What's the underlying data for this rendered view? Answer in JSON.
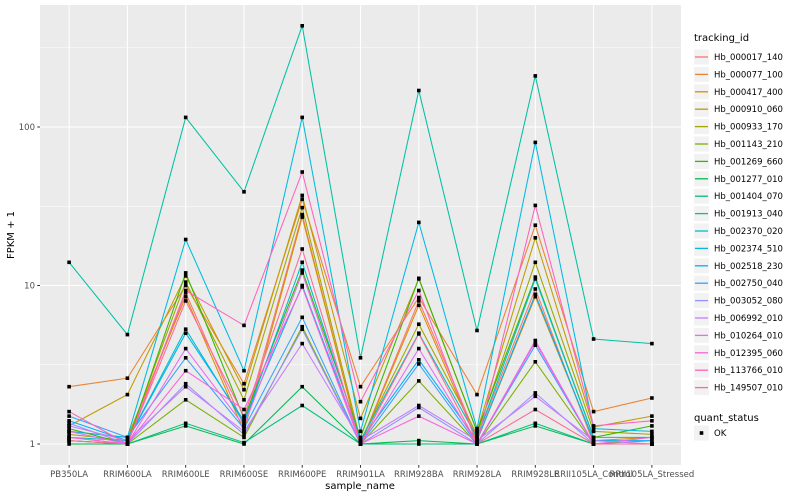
{
  "figure": {
    "background": "#FFFFFF",
    "panel_background": "#EBEBEB",
    "grid_color": "#FFFFFF",
    "tick_color": "#333333",
    "tick_label_color": "#4D4D4D",
    "axis_title_color": "#000000",
    "legend_key_background": "#F2F2F2"
  },
  "chart_data": {
    "type": "line",
    "title": "",
    "xlabel": "sample_name",
    "ylabel": "FPKM + 1",
    "y_scale": "log10",
    "grid": true,
    "legend_position": "right",
    "y_tick_labels": [
      "1",
      "10",
      "100"
    ],
    "y_tick_values": [
      1,
      10,
      100
    ],
    "y_minor_values": [
      3.1623,
      31.623,
      316.23
    ],
    "ylim_log10": [
      -0.132,
      2.77
    ],
    "categories": [
      "PB350LA",
      "RRIM600LA",
      "RRIM600LE",
      "RRIM600SE",
      "RRIM600PE",
      "RRIM901LA",
      "RRIM928BA",
      "RRIM928LA",
      "RRIM928LE",
      "RRII105LA_Control",
      "RRII105LA_Stressed"
    ],
    "point": {
      "shape": "square",
      "color": "#000000",
      "size": 3.6
    },
    "series": [
      {
        "name": "Hb_000017_140",
        "color": "#F8766D",
        "values": [
          1.1,
          1.0,
          9.0,
          1.3,
          28,
          1.0,
          8.0,
          1.1,
          9.5,
          1.0,
          1.0
        ]
      },
      {
        "name": "Hb_000077_100",
        "color": "#EA8331",
        "values": [
          2.3,
          2.6,
          10.0,
          2.4,
          35,
          2.3,
          8.4,
          2.05,
          24,
          1.6,
          1.95
        ]
      },
      {
        "name": "Hb_000417_400",
        "color": "#D89000",
        "values": [
          1.2,
          1.1,
          8.5,
          1.2,
          27,
          1.0,
          7.5,
          1.05,
          8.5,
          1.05,
          1.1
        ]
      },
      {
        "name": "Hb_000910_060",
        "color": "#C09B00",
        "values": [
          1.3,
          2.05,
          11.5,
          2.2,
          37,
          1.45,
          11.0,
          1.2,
          20,
          1.28,
          1.5
        ]
      },
      {
        "name": "Hb_000933_170",
        "color": "#A3A500",
        "values": [
          1.15,
          1.05,
          10.5,
          1.9,
          31,
          1.05,
          5.7,
          1.15,
          14,
          1.2,
          1.15
        ]
      },
      {
        "name": "Hb_001143_210",
        "color": "#7CAE00",
        "values": [
          1.05,
          1.0,
          1.9,
          1.1,
          5.5,
          1.0,
          2.5,
          1.0,
          3.3,
          1.0,
          1.05
        ]
      },
      {
        "name": "Hb_001269_660",
        "color": "#39B600",
        "values": [
          1.25,
          1.0,
          12.0,
          1.45,
          12.5,
          1.1,
          11.1,
          1.2,
          11.3,
          1.1,
          1.3
        ]
      },
      {
        "name": "Hb_001277_010",
        "color": "#00BB4E",
        "values": [
          1.0,
          1.0,
          1.3,
          1.0,
          2.3,
          1.0,
          1.05,
          1.0,
          1.3,
          1.0,
          1.0
        ]
      },
      {
        "name": "Hb_001404_070",
        "color": "#00BF7D",
        "values": [
          1.05,
          1.0,
          1.35,
          1.02,
          1.75,
          1.0,
          1.0,
          1.0,
          1.35,
          1.0,
          1.0
        ]
      },
      {
        "name": "Hb_001913_040",
        "color": "#00C1A3",
        "values": [
          14,
          4.9,
          115,
          39,
          435,
          3.5,
          170,
          5.2,
          210,
          4.6,
          4.3
        ]
      },
      {
        "name": "Hb_002370_020",
        "color": "#00BFC4",
        "values": [
          1.1,
          1.05,
          5.3,
          1.35,
          14,
          1.05,
          5.0,
          1.1,
          11.0,
          1.1,
          1.1
        ]
      },
      {
        "name": "Hb_002374_510",
        "color": "#00BAE0",
        "values": [
          1.2,
          1.1,
          19.5,
          2.9,
          115,
          1.2,
          25,
          1.25,
          80,
          1.25,
          1.2
        ]
      },
      {
        "name": "Hb_002518_230",
        "color": "#00B0F6",
        "values": [
          1.4,
          1.05,
          5.0,
          1.4,
          10,
          1.05,
          3.4,
          1.05,
          8.8,
          1.05,
          1.05
        ]
      },
      {
        "name": "Hb_002750_040",
        "color": "#35A2FF",
        "values": [
          1.5,
          1.1,
          3.5,
          1.25,
          6.3,
          1.0,
          3.2,
          1.0,
          4.2,
          1.0,
          1.0
        ]
      },
      {
        "name": "Hb_003052_080",
        "color": "#9590FF",
        "values": [
          1.35,
          1.0,
          2.4,
          1.15,
          5.3,
          1.0,
          1.7,
          1.0,
          2.1,
          1.0,
          1.0
        ]
      },
      {
        "name": "Hb_006992_010",
        "color": "#C77CFF",
        "values": [
          1.3,
          1.05,
          2.3,
          1.2,
          4.3,
          1.05,
          1.75,
          1.05,
          2.0,
          1.05,
          1.0
        ]
      },
      {
        "name": "Hb_010264_010",
        "color": "#E76BF3",
        "values": [
          1.2,
          1.0,
          4.0,
          1.3,
          12,
          1.0,
          4.0,
          1.0,
          4.5,
          1.0,
          1.1
        ]
      },
      {
        "name": "Hb_012395_060",
        "color": "#FA62DB",
        "values": [
          1.1,
          1.0,
          2.9,
          1.65,
          9.8,
          1.0,
          1.5,
          1.0,
          4.4,
          1.0,
          1.0
        ]
      },
      {
        "name": "Hb_113766_010",
        "color": "#FF62BC",
        "values": [
          1.6,
          1.0,
          9.3,
          5.6,
          52,
          1.85,
          9.3,
          1.0,
          32,
          1.3,
          1.4
        ]
      },
      {
        "name": "Hb_149507_010",
        "color": "#FF6A98",
        "values": [
          1.05,
          1.0,
          8.0,
          1.5,
          17,
          1.0,
          4.95,
          1.0,
          1.65,
          1.0,
          1.0
        ]
      }
    ],
    "legend": {
      "color_title": "tracking_id",
      "shape_title": "quant_status",
      "shape_entries": [
        {
          "label": "OK",
          "color": "#000000",
          "shape": "square"
        }
      ]
    }
  }
}
